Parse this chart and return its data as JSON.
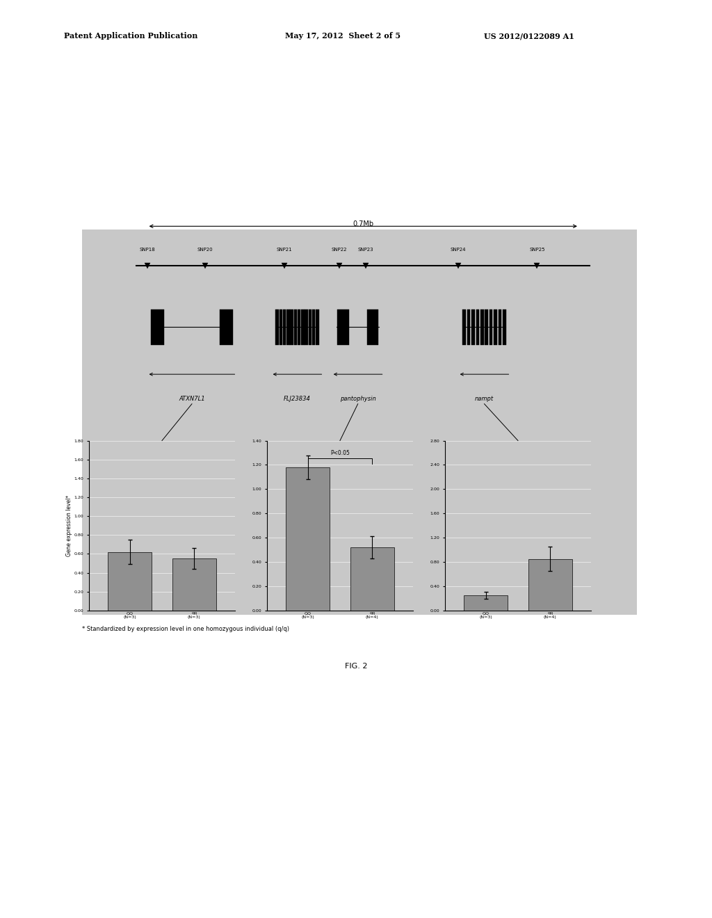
{
  "page_header_left": "Patent Application Publication",
  "page_header_mid": "May 17, 2012  Sheet 2 of 5",
  "page_header_right": "US 2012/0122089 A1",
  "fig_label": "FIG. 2",
  "footnote": "* Standardized by expression level in one homozygous individual (q/q)",
  "scale_label": "0.7Mb",
  "snp_positions": [
    0.09,
    0.2,
    0.35,
    0.455,
    0.505,
    0.68,
    0.83
  ],
  "snp_labels": [
    "SNP18",
    "SNP20",
    "SNP21",
    "SNP22",
    "SNP23",
    "SNP24",
    "SNP25"
  ],
  "bar_charts": [
    {
      "gene": "ATXN7L1",
      "ylim_max": 1.8,
      "ytick_step": 0.2,
      "groups": [
        "QQ\n(N=3)",
        "qq\n(N=3)"
      ],
      "values": [
        0.62,
        0.55
      ],
      "errors": [
        0.13,
        0.11
      ],
      "has_significance": false
    },
    {
      "gene": "pantophysin",
      "ylim_max": 1.4,
      "ytick_step": 0.2,
      "groups": [
        "QQ\n(N=3)",
        "qq\n(N=4)"
      ],
      "values": [
        1.18,
        0.52
      ],
      "errors": [
        0.1,
        0.09
      ],
      "has_significance": true,
      "significance_text": "P<0.05"
    },
    {
      "gene": "nampt",
      "ylim_max": 2.8,
      "ytick_step": 0.4,
      "groups": [
        "QQ\n(N=3)",
        "qq\n(N=4)"
      ],
      "values": [
        0.25,
        0.85
      ],
      "errors": [
        0.06,
        0.2
      ],
      "has_significance": false
    }
  ],
  "bar_color": "#909090",
  "bg_color": "#c8c8c8",
  "diagram_bg": "#c8c8c8",
  "ylabel": "Gene expression level*"
}
